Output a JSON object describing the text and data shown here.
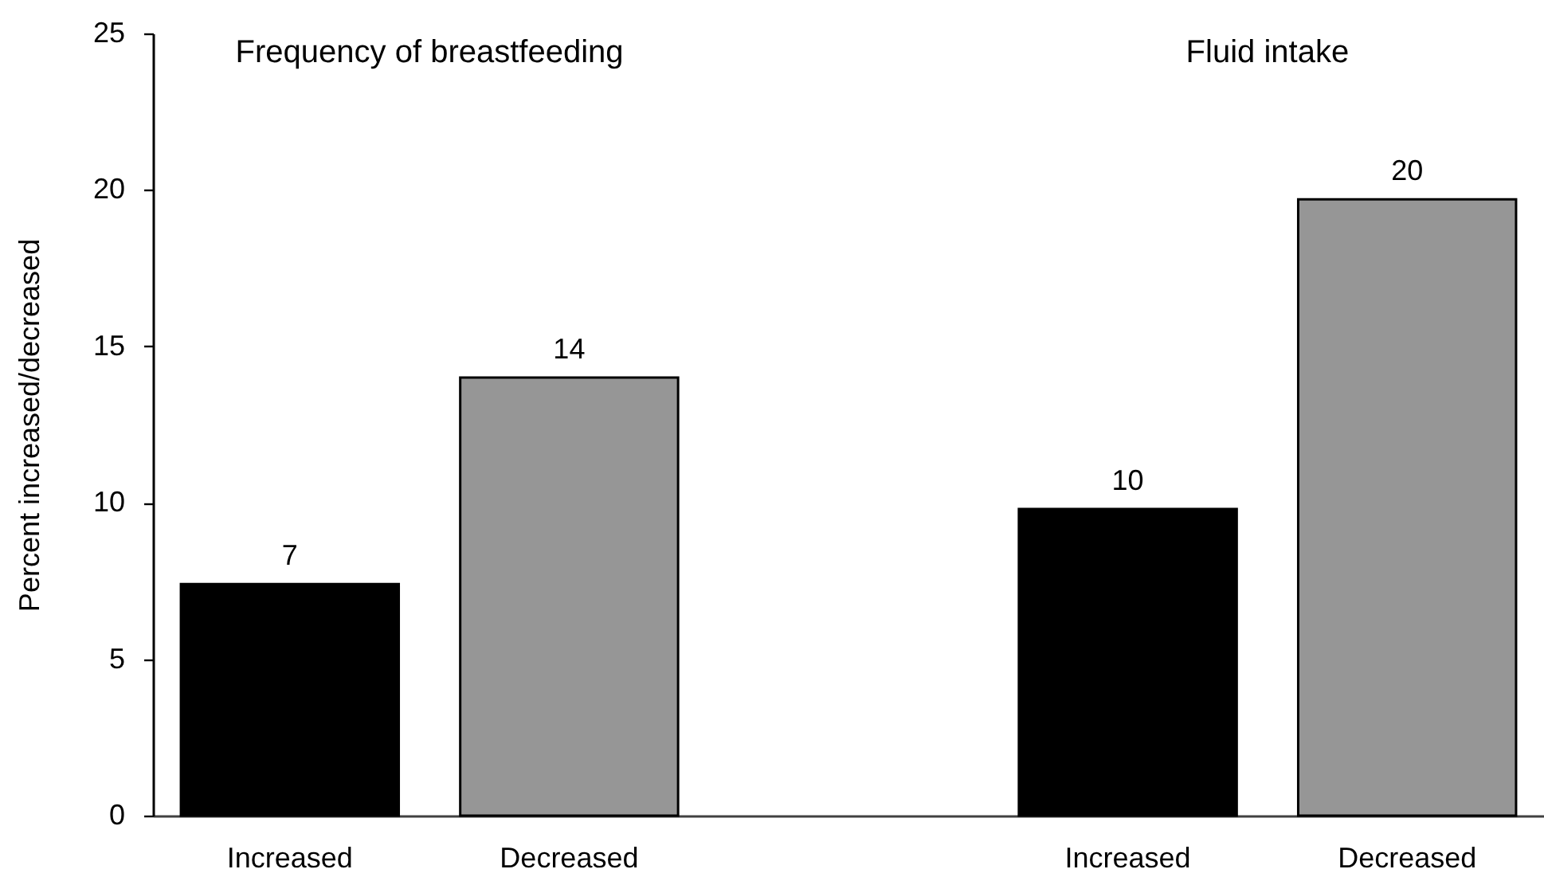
{
  "chart_data": {
    "type": "bar",
    "ylabel": "Percent increased/decreased",
    "categories": [
      "Increased",
      "Decreased",
      null,
      "Increased",
      "Decreased"
    ],
    "values": [
      7.4,
      14,
      null,
      9.8,
      19.7
    ],
    "colors": [
      "#000000",
      "#969696",
      null,
      "#000000",
      "#969696"
    ],
    "value_labels": [
      "7",
      "14",
      null,
      "10",
      "20"
    ],
    "ylim": [
      0,
      25
    ],
    "yticks": [
      0,
      5,
      10,
      15,
      20,
      25
    ],
    "annotations": [
      "Frequency of breastfeeding",
      "Fluid intake"
    ]
  }
}
